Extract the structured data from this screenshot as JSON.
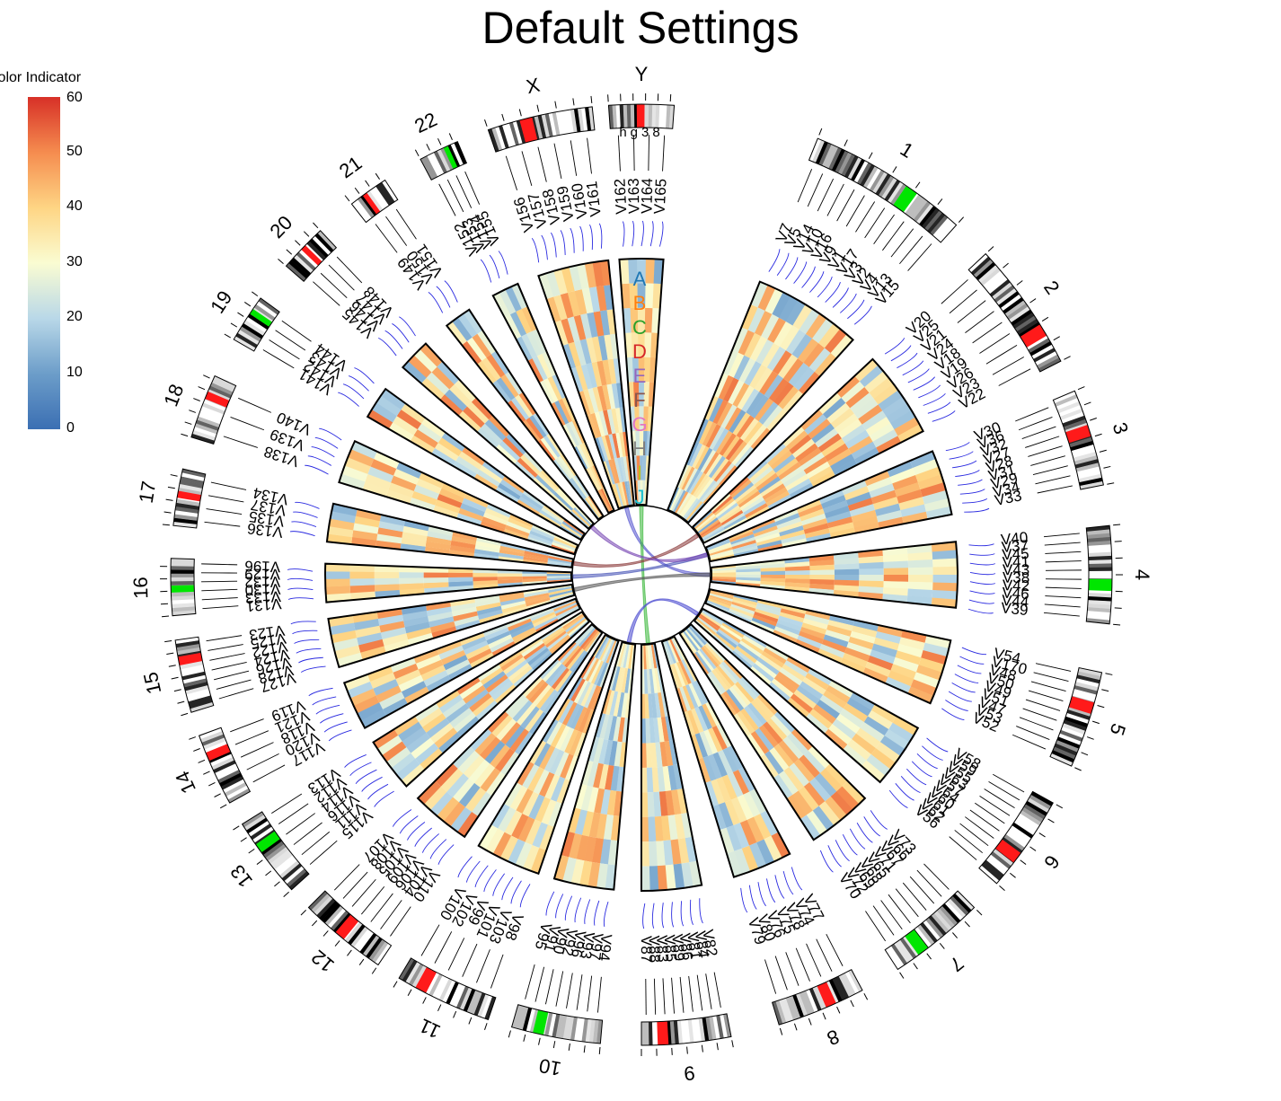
{
  "title": "Default Settings",
  "genome_label": "hg38",
  "colorbar": {
    "title": "Color Indicator",
    "ticks": [
      "0",
      "10",
      "20",
      "30",
      "40",
      "50",
      "60"
    ],
    "colors": [
      "#3b6fb3",
      "#6c9dc9",
      "#b9d8e8",
      "#fafcd2",
      "#fed584",
      "#f58c4f",
      "#d73027"
    ]
  },
  "chart_data": {
    "type": "heatmap",
    "layout": "circular",
    "value_range": [
      0,
      60
    ],
    "chromosomes": [
      "1",
      "2",
      "3",
      "4",
      "5",
      "6",
      "7",
      "8",
      "9",
      "10",
      "11",
      "12",
      "13",
      "14",
      "15",
      "16",
      "17",
      "18",
      "19",
      "20",
      "21",
      "22",
      "X",
      "Y"
    ],
    "track_names": [
      "A",
      "B",
      "C",
      "D",
      "E",
      "F",
      "G",
      "H",
      "I",
      "J"
    ],
    "track_colors": [
      "#1f77b4",
      "#ff7f0e",
      "#2ca02c",
      "#d62728",
      "#9467bd",
      "#8c564b",
      "#e377c2",
      "#7f7f7f",
      "#bcbd22",
      "#17becf"
    ],
    "gene_labels": [
      [
        "V7",
        "V5",
        "V14",
        "V10",
        "V16",
        "V9",
        "V1",
        "V17",
        "V3",
        "V2",
        "V4",
        "V13",
        "V15"
      ],
      [
        "V20",
        "V25",
        "V21",
        "V24",
        "V18",
        "V19",
        "V26",
        "V23",
        "V22"
      ],
      [
        "V30",
        "V36",
        "V32",
        "V27",
        "V28",
        "V31",
        "V29",
        "V34",
        "V33"
      ],
      [
        "V40",
        "V37",
        "V45",
        "V41",
        "V43",
        "V38",
        "V42",
        "V46",
        "V44",
        "V39"
      ],
      [
        "V54",
        "V170",
        "V48",
        "V50",
        "V49",
        "V51",
        "V47",
        "V53",
        "V52"
      ],
      [
        "V58",
        "V59",
        "V55",
        "V63",
        "V57",
        "V64",
        "V60",
        "V61",
        "V62",
        "V56"
      ],
      [
        "V73",
        "V66",
        "V67",
        "V71",
        "V65",
        "V68",
        "V69",
        "V72",
        "V70"
      ],
      [
        "V77",
        "V74",
        "V78",
        "V75",
        "V76",
        "V80",
        "V79"
      ],
      [
        "V82",
        "V84",
        "V81",
        "V86",
        "V89",
        "V85",
        "V83",
        "V88",
        "V87"
      ],
      [
        "V94",
        "V97",
        "V93",
        "V96",
        "V92",
        "V90",
        "V91",
        "V95"
      ],
      [
        "V98",
        "V103",
        "V101",
        "V99",
        "V102",
        "V100"
      ],
      [
        "V110",
        "V104",
        "V106",
        "V109",
        "V105",
        "V108",
        "V107"
      ],
      [
        "V115",
        "V111",
        "V116",
        "V114",
        "V112",
        "V113"
      ],
      [
        "V117",
        "V120",
        "V118",
        "V121",
        "V119"
      ],
      [
        "V127",
        "V128",
        "V126",
        "V124",
        "V122",
        "V125",
        "V123"
      ],
      [
        "V131",
        "V133",
        "V130",
        "V132",
        "V129",
        "V196"
      ],
      [
        "V136",
        "V135",
        "V137",
        "V134"
      ],
      [
        "V138",
        "V139",
        "V140"
      ],
      [
        "V141",
        "V142",
        "V143",
        "V144"
      ],
      [
        "V145",
        "V146",
        "V147",
        "V148"
      ],
      [
        "V149",
        "V150",
        "V151"
      ],
      [
        "V152",
        "V153",
        "V154",
        "V155"
      ],
      [
        "V156",
        "V157",
        "V158",
        "V159",
        "V160",
        "V161"
      ],
      [
        "V162",
        "V163",
        "V164",
        "V165"
      ]
    ],
    "links": [
      {
        "from": "X",
        "to": "4",
        "color": "#5a5ad0"
      },
      {
        "from": "Y",
        "to": "9",
        "color": "#3cb83c"
      },
      {
        "from": "16",
        "to": "3",
        "color": "#4b57b8"
      },
      {
        "from": "17",
        "to": "2",
        "color": "#8b3a3a"
      },
      {
        "from": "15",
        "to": "4",
        "color": "#555555"
      },
      {
        "from": "10",
        "to": "6",
        "color": "#4b4bd0"
      },
      {
        "from": "20",
        "to": "3",
        "color": "#7a4ab5"
      }
    ]
  }
}
